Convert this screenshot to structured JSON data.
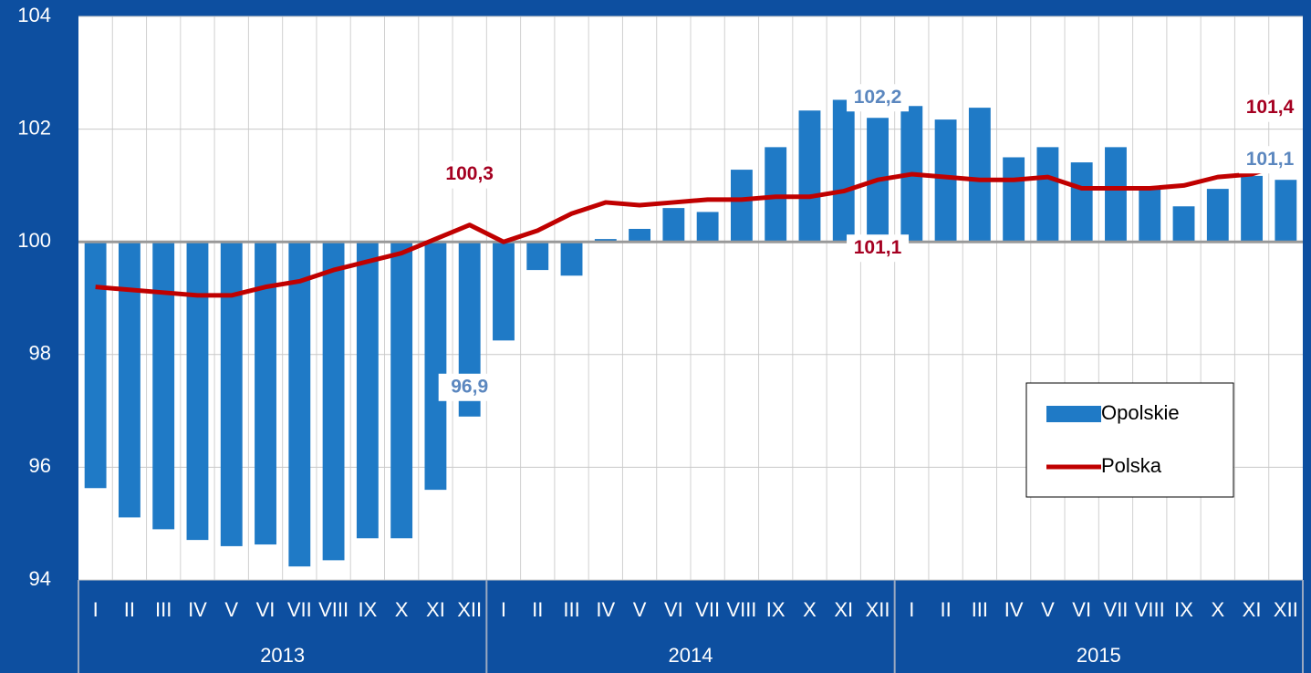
{
  "chart_data": {
    "type": "bar_line",
    "categories": [
      "I",
      "II",
      "III",
      "IV",
      "V",
      "VI",
      "VII",
      "VIII",
      "IX",
      "X",
      "XI",
      "XII",
      "I",
      "II",
      "III",
      "IV",
      "V",
      "VI",
      "VII",
      "VIII",
      "IX",
      "X",
      "XI",
      "XII",
      "I",
      "II",
      "III",
      "IV",
      "V",
      "VI",
      "VII",
      "VIII",
      "IX",
      "X",
      "XI",
      "XII"
    ],
    "years": [
      "2013",
      "2014",
      "2015"
    ],
    "series": [
      {
        "name": "Opolskie",
        "type": "bar",
        "color": "#1f7ac6",
        "values": [
          95.63,
          95.11,
          94.9,
          94.71,
          94.6,
          94.63,
          94.24,
          94.35,
          94.74,
          94.74,
          95.6,
          96.9,
          98.25,
          99.5,
          99.4,
          100.05,
          100.23,
          100.6,
          100.53,
          101.28,
          101.68,
          102.33,
          102.52,
          102.2,
          102.41,
          102.17,
          102.38,
          101.5,
          101.68,
          101.41,
          101.68,
          100.97,
          100.63,
          100.94,
          101.17,
          101.1
        ],
        "value_labels": [
          null,
          null,
          null,
          null,
          null,
          null,
          null,
          null,
          null,
          null,
          null,
          "96,9",
          null,
          null,
          null,
          null,
          null,
          null,
          null,
          null,
          null,
          null,
          null,
          "102,2",
          null,
          null,
          null,
          null,
          null,
          null,
          null,
          null,
          null,
          null,
          null,
          "101,1"
        ],
        "label_color": "#5b87bf"
      },
      {
        "name": "Polska",
        "type": "line",
        "color": "#c00000",
        "values": [
          99.2,
          99.15,
          99.1,
          99.05,
          99.05,
          99.2,
          99.3,
          99.5,
          99.65,
          99.8,
          100.05,
          100.3,
          100.0,
          100.2,
          100.5,
          100.7,
          100.65,
          100.7,
          100.75,
          100.75,
          100.8,
          100.8,
          100.9,
          101.1,
          101.2,
          101.15,
          101.1,
          101.1,
          101.15,
          100.95,
          100.95,
          100.95,
          101.0,
          101.15,
          101.2,
          101.4
        ],
        "value_labels": [
          null,
          null,
          null,
          null,
          null,
          null,
          null,
          null,
          null,
          null,
          null,
          "100,3",
          null,
          null,
          null,
          null,
          null,
          null,
          null,
          null,
          null,
          null,
          null,
          "101,1",
          null,
          null,
          null,
          null,
          null,
          null,
          null,
          null,
          null,
          null,
          null,
          "101,4"
        ],
        "label_color": "#a50021"
      }
    ],
    "bar_base": 100,
    "ylim": [
      94,
      104
    ],
    "yticks": [
      94,
      96,
      98,
      100,
      102,
      104
    ],
    "grid": true,
    "legend": "right"
  }
}
